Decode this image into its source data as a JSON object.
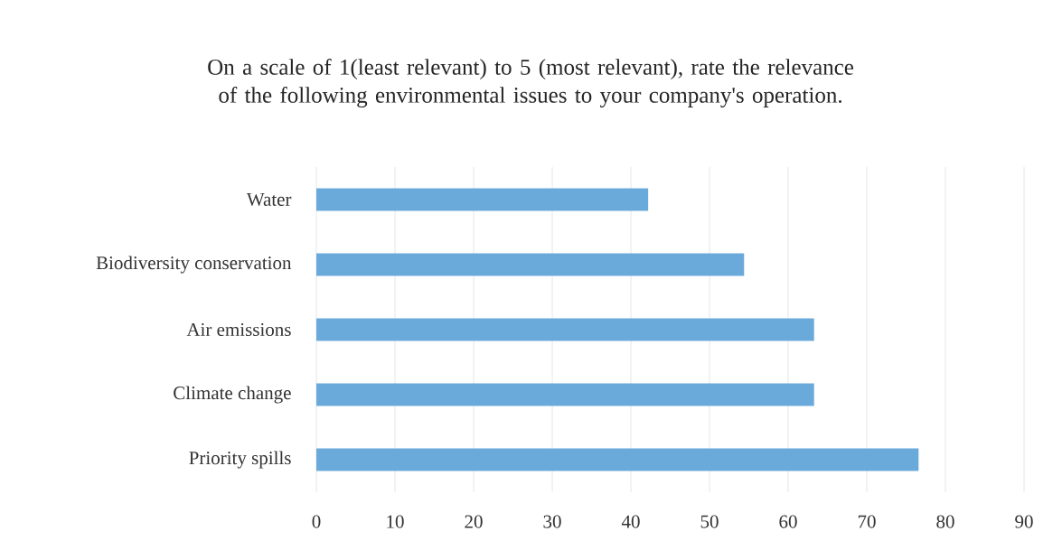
{
  "chart_data": {
    "type": "bar",
    "orientation": "horizontal",
    "title": "On a scale of 1(least relevant) to 5 (most relevant), rate the relevance of the following environmental issues to your company's operation.",
    "categories": [
      "Water",
      "Biodiversity conservation",
      "Air emissions",
      "Climate change",
      "Priority spills"
    ],
    "values": [
      42.2,
      54.4,
      63.3,
      63.3,
      76.6
    ],
    "color": "#6aaadb",
    "xlim": [
      0,
      90
    ],
    "xticks": [
      0,
      10,
      20,
      30,
      40,
      50,
      60,
      70,
      80,
      90
    ],
    "grid": "x"
  }
}
